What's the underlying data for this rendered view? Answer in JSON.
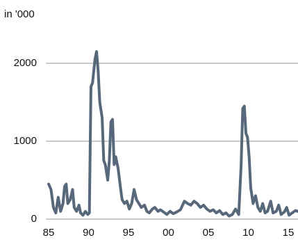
{
  "chart_data": {
    "type": "line",
    "y_label": "in '000",
    "x": [
      1985.0,
      1985.3,
      1985.6,
      1985.9,
      1986.2,
      1986.5,
      1986.8,
      1987.0,
      1987.2,
      1987.4,
      1987.7,
      1988.0,
      1988.2,
      1988.5,
      1988.8,
      1989.0,
      1989.3,
      1989.6,
      1989.9,
      1990.1,
      1990.3,
      1990.5,
      1990.8,
      1991.0,
      1991.2,
      1991.4,
      1991.7,
      1991.9,
      1992.1,
      1992.4,
      1992.6,
      1992.8,
      1993.0,
      1993.2,
      1993.4,
      1993.7,
      1994.0,
      1994.2,
      1994.5,
      1994.8,
      1995.1,
      1995.4,
      1995.7,
      1996.0,
      1996.3,
      1996.6,
      1997.0,
      1997.3,
      1997.6,
      1998.0,
      1998.3,
      1998.7,
      1999.0,
      1999.4,
      1999.8,
      2000.2,
      2000.6,
      2001.0,
      2001.5,
      2002.0,
      2002.4,
      2002.8,
      2003.2,
      2003.6,
      2004.0,
      2004.4,
      2004.8,
      2005.2,
      2005.6,
      2006.0,
      2006.4,
      2006.8,
      2007.2,
      2007.6,
      2008.0,
      2008.4,
      2008.8,
      2009.1,
      2009.3,
      2009.5,
      2009.7,
      2009.9,
      2010.1,
      2010.3,
      2010.6,
      2010.9,
      2011.2,
      2011.5,
      2011.8,
      2012.1,
      2012.4,
      2012.8,
      2013.1,
      2013.5,
      2013.8,
      2014.1,
      2014.5,
      2014.8,
      2015.1,
      2015.5,
      2015.9,
      2016.2
    ],
    "series": [
      {
        "color": "#56687a",
        "values": [
          450,
          380,
          150,
          80,
          280,
          100,
          200,
          420,
          450,
          200,
          250,
          380,
          150,
          100,
          180,
          80,
          50,
          100,
          60,
          80,
          1700,
          1750,
          2050,
          2150,
          1900,
          1500,
          1300,
          750,
          700,
          500,
          750,
          1250,
          1280,
          700,
          800,
          650,
          400,
          250,
          200,
          230,
          130,
          200,
          380,
          250,
          200,
          150,
          180,
          100,
          80,
          130,
          150,
          100,
          120,
          90,
          60,
          100,
          70,
          90,
          120,
          230,
          200,
          180,
          230,
          200,
          150,
          180,
          130,
          100,
          120,
          80,
          110,
          60,
          80,
          40,
          60,
          130,
          60,
          700,
          1420,
          1450,
          1100,
          1050,
          800,
          400,
          200,
          300,
          150,
          100,
          200,
          80,
          100,
          230,
          80,
          100,
          180,
          60,
          90,
          150,
          50,
          80,
          110,
          100
        ]
      }
    ],
    "xlim": [
      1985,
      2016.2
    ],
    "xticks": [
      {
        "value": 1985,
        "label": "85"
      },
      {
        "value": 1990,
        "label": "90"
      },
      {
        "value": 1995,
        "label": "95"
      },
      {
        "value": 2000,
        "label": "00"
      },
      {
        "value": 2005,
        "label": "05"
      },
      {
        "value": 2010,
        "label": "10"
      },
      {
        "value": 2015,
        "label": "15"
      }
    ],
    "ylim": [
      0,
      2280
    ],
    "yticks": [
      0,
      1000,
      2000
    ],
    "grid": true
  }
}
